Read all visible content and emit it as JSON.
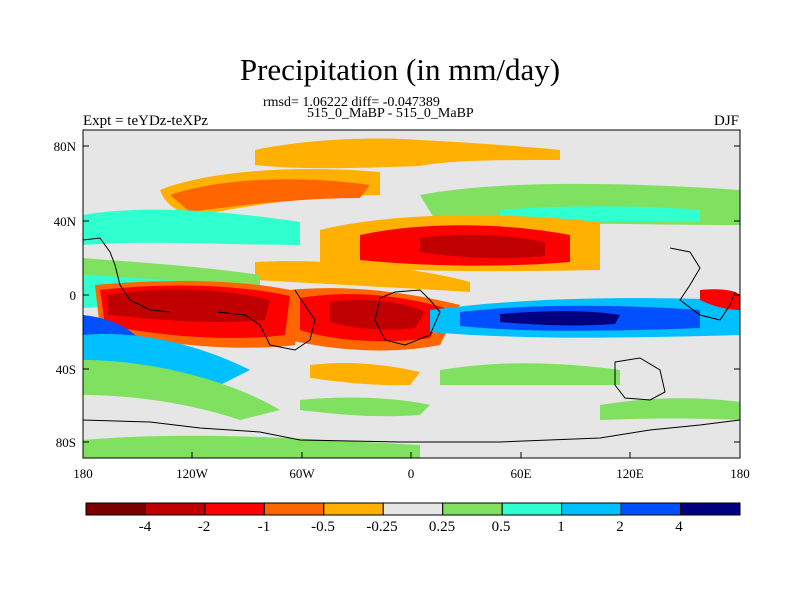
{
  "title": "Precipitation (in mm/day)",
  "stats": "rmsd= 1.06222 diff= -0.047389",
  "subtitle": "515_0_MaBP - 515_0_MaBP",
  "left_label": "Expt = teYDz-teXPz",
  "right_label": "DJF",
  "map": {
    "lon_ticks": [
      "180",
      "120W",
      "60W",
      "0",
      "60E",
      "120E",
      "180"
    ],
    "lat_ticks": [
      "80N",
      "40N",
      "0",
      "40S",
      "80S"
    ],
    "background_color": "#e6e6e6"
  },
  "colorbar": {
    "labels": [
      "-4",
      "-2",
      "-1",
      "-0.5",
      "-0.25",
      "0.25",
      "0.5",
      "1",
      "2",
      "4"
    ],
    "colors": [
      "#7a0000",
      "#c00000",
      "#ff0000",
      "#ff6600",
      "#ffb000",
      "#e6e6e6",
      "#80e060",
      "#30ffd0",
      "#00c0ff",
      "#0050ff",
      "#000080"
    ]
  }
}
